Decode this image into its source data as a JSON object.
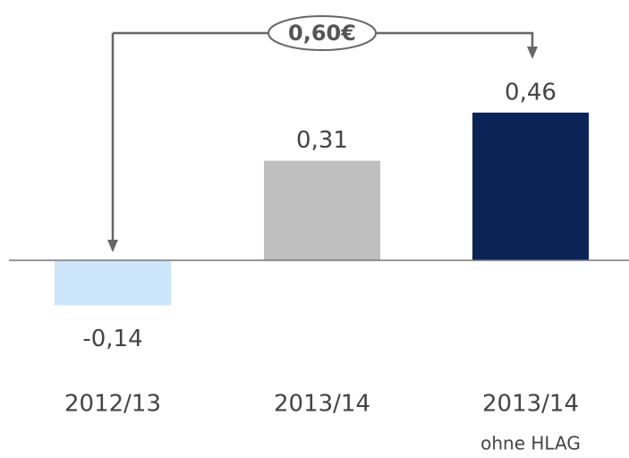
{
  "chart_data": {
    "type": "bar",
    "categories": [
      "2012/13",
      "2013/14",
      "2013/14"
    ],
    "category_sublabels": [
      null,
      null,
      "ohne HLAG"
    ],
    "values": [
      -0.14,
      0.31,
      0.46
    ],
    "value_labels": [
      "-0,14",
      "0,31",
      "0,46"
    ],
    "colors": [
      "#cce5fb",
      "#bfbfbf",
      "#0a2458"
    ],
    "ylim": [
      -0.3,
      0.6
    ],
    "annotation": "0,60€"
  }
}
